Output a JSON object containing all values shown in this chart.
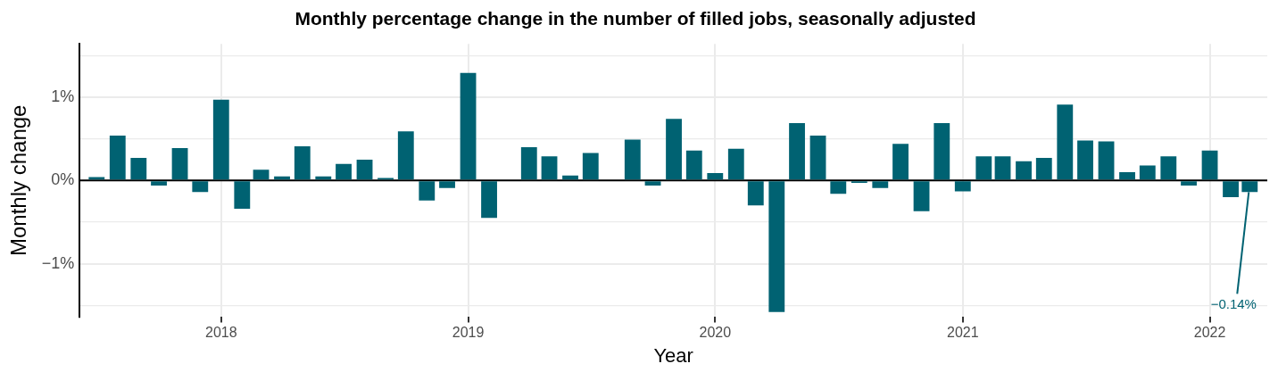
{
  "chart_data": {
    "type": "bar",
    "title": "Monthly percentage change in the number of filled jobs, seasonally adjusted",
    "xlabel": "Year",
    "ylabel": "Monthly change",
    "x": [
      "2017-07",
      "2017-08",
      "2017-09",
      "2017-10",
      "2017-11",
      "2017-12",
      "2018-01",
      "2018-02",
      "2018-03",
      "2018-04",
      "2018-05",
      "2018-06",
      "2018-07",
      "2018-08",
      "2018-09",
      "2018-10",
      "2018-11",
      "2018-12",
      "2019-01",
      "2019-02",
      "2019-03",
      "2019-04",
      "2019-05",
      "2019-06",
      "2019-07",
      "2019-08",
      "2019-09",
      "2019-10",
      "2019-11",
      "2019-12",
      "2020-01",
      "2020-02",
      "2020-03",
      "2020-04",
      "2020-05",
      "2020-06",
      "2020-07",
      "2020-08",
      "2020-09",
      "2020-10",
      "2020-11",
      "2020-12",
      "2021-01",
      "2021-02",
      "2021-03",
      "2021-04",
      "2021-05",
      "2021-06",
      "2021-07",
      "2021-08",
      "2021-09",
      "2021-10",
      "2021-11",
      "2021-12",
      "2022-01",
      "2022-02",
      "2022-03"
    ],
    "values": [
      0.04,
      0.54,
      0.27,
      -0.06,
      0.39,
      -0.14,
      0.97,
      -0.34,
      0.13,
      0.05,
      0.41,
      0.05,
      0.2,
      0.25,
      0.03,
      0.59,
      -0.24,
      -0.09,
      1.29,
      -0.45,
      0.01,
      0.4,
      0.29,
      0.06,
      0.33,
      0.01,
      0.49,
      -0.06,
      0.74,
      0.36,
      0.09,
      0.38,
      -0.3,
      -1.58,
      0.69,
      0.54,
      -0.16,
      -0.03,
      -0.09,
      0.44,
      -0.37,
      0.69,
      -0.13,
      0.29,
      0.29,
      0.23,
      0.27,
      0.91,
      0.48,
      0.47,
      0.1,
      0.18,
      0.29,
      -0.06,
      0.36,
      -0.2,
      -0.14
    ],
    "color": "#006272",
    "xlim": [
      "2017-06-06",
      "2022-03-27"
    ],
    "xticks": [
      "2018",
      "2019",
      "2020",
      "2021",
      "2022"
    ],
    "ylim": [
      -1.64,
      1.64
    ],
    "yticks": [
      {
        "value": -1.5,
        "label": null
      },
      {
        "value": -1,
        "label": "−1%"
      },
      {
        "value": -0.5,
        "label": null
      },
      {
        "value": 0,
        "label": "0%"
      },
      {
        "value": 0.5,
        "label": null
      },
      {
        "value": 1,
        "label": "1%"
      },
      {
        "value": 1.5,
        "label": null
      }
    ],
    "ref_lines": [
      {
        "axis": "y",
        "value": 0,
        "color": "#000000"
      }
    ],
    "annotations": [
      {
        "text": "−0.14%",
        "x": "2022-03",
        "y": -0.14
      }
    ],
    "grid": true,
    "legend": false
  }
}
